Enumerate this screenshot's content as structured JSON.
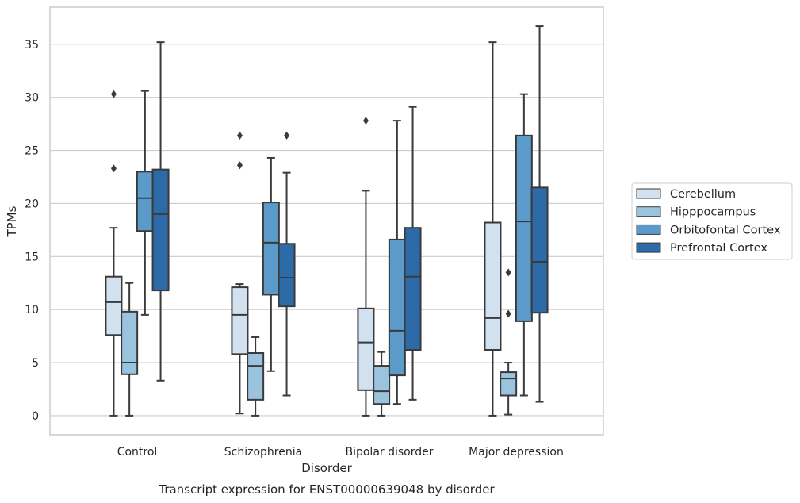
{
  "chart_data": {
    "type": "box",
    "caption": "Transcript expression for ENST00000639048 by disorder",
    "xlabel": "Disorder",
    "ylabel": "TPMs",
    "ylim": [
      -1.8,
      38.5
    ],
    "yticks": [
      0,
      5,
      10,
      15,
      20,
      25,
      30,
      35
    ],
    "grid": "horizontal",
    "legend_position": "right",
    "categories": [
      "Control",
      "Schizophrenia",
      "Bipolar disorder",
      "Major depression"
    ],
    "series": [
      {
        "name": "Cerebellum",
        "color": "#d2e1ef",
        "boxes": [
          {
            "whisker_low": 0.0,
            "q1": 7.6,
            "median": 10.7,
            "q3": 13.1,
            "whisker_high": 17.7,
            "outliers": [
              23.3,
              30.3
            ]
          },
          {
            "whisker_low": 0.2,
            "q1": 5.8,
            "median": 9.5,
            "q3": 12.1,
            "whisker_high": 12.4,
            "outliers": [
              23.6,
              26.4
            ]
          },
          {
            "whisker_low": 0.0,
            "q1": 2.4,
            "median": 6.9,
            "q3": 10.1,
            "whisker_high": 21.2,
            "outliers": [
              27.8
            ]
          },
          {
            "whisker_low": 0.0,
            "q1": 6.2,
            "median": 9.2,
            "q3": 18.2,
            "whisker_high": 35.2,
            "outliers": []
          }
        ]
      },
      {
        "name": "Hipppocampus",
        "color": "#9ac3de",
        "boxes": [
          {
            "whisker_low": 0.0,
            "q1": 3.9,
            "median": 5.0,
            "q3": 9.8,
            "whisker_high": 12.5,
            "outliers": []
          },
          {
            "whisker_low": 0.0,
            "q1": 1.5,
            "median": 4.7,
            "q3": 5.9,
            "whisker_high": 7.4,
            "outliers": []
          },
          {
            "whisker_low": 0.0,
            "q1": 1.1,
            "median": 2.3,
            "q3": 4.7,
            "whisker_high": 6.0,
            "outliers": []
          },
          {
            "whisker_low": 0.1,
            "q1": 1.9,
            "median": 3.5,
            "q3": 4.1,
            "whisker_high": 5.0,
            "outliers": [
              9.6,
              13.5
            ]
          }
        ]
      },
      {
        "name": "Orbitofontal Cortex",
        "color": "#5a9bc9",
        "boxes": [
          {
            "whisker_low": 9.5,
            "q1": 17.4,
            "median": 20.5,
            "q3": 23.0,
            "whisker_high": 30.6,
            "outliers": []
          },
          {
            "whisker_low": 4.2,
            "q1": 11.4,
            "median": 16.3,
            "q3": 20.1,
            "whisker_high": 24.3,
            "outliers": []
          },
          {
            "whisker_low": 1.1,
            "q1": 3.8,
            "median": 8.0,
            "q3": 16.6,
            "whisker_high": 27.8,
            "outliers": []
          },
          {
            "whisker_low": 1.9,
            "q1": 8.9,
            "median": 18.3,
            "q3": 26.4,
            "whisker_high": 30.3,
            "outliers": []
          }
        ]
      },
      {
        "name": "Prefrontal Cortex",
        "color": "#2c6aa8",
        "boxes": [
          {
            "whisker_low": 3.3,
            "q1": 11.8,
            "median": 19.0,
            "q3": 23.2,
            "whisker_high": 35.2,
            "outliers": []
          },
          {
            "whisker_low": 1.9,
            "q1": 10.3,
            "median": 13.0,
            "q3": 16.2,
            "whisker_high": 22.9,
            "outliers": [
              26.4
            ]
          },
          {
            "whisker_low": 1.5,
            "q1": 6.2,
            "median": 13.1,
            "q3": 17.7,
            "whisker_high": 29.1,
            "outliers": []
          },
          {
            "whisker_low": 1.3,
            "q1": 9.7,
            "median": 14.5,
            "q3": 21.5,
            "whisker_high": 36.7,
            "outliers": []
          }
        ]
      }
    ]
  }
}
